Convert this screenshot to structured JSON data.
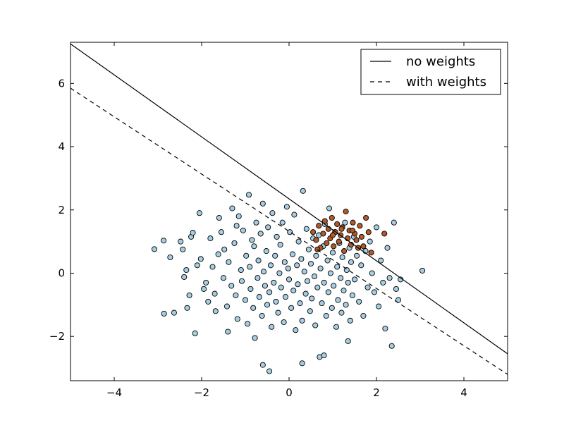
{
  "chart_data": {
    "type": "scatter",
    "title": "",
    "xlabel": "",
    "ylabel": "",
    "xlim": [
      -5,
      5
    ],
    "ylim": [
      -3.4,
      7.3
    ],
    "xticks": [
      -4,
      -2,
      0,
      2,
      4
    ],
    "xtick_labels": [
      "−4",
      "−2",
      "0",
      "2",
      "4"
    ],
    "yticks": [
      -2,
      0,
      2,
      4,
      6
    ],
    "ytick_labels": [
      "−2",
      "0",
      "2",
      "4",
      "6"
    ],
    "grid": false,
    "legend_position": "top-right",
    "scatter_series": [
      {
        "color": "#a6cee3",
        "points": [
          [
            -3.08,
            0.76
          ],
          [
            -2.87,
            1.03
          ],
          [
            -2.86,
            -1.28
          ],
          [
            -2.72,
            0.5
          ],
          [
            -2.63,
            -1.25
          ],
          [
            -2.48,
            1.0
          ],
          [
            -2.43,
            0.75
          ],
          [
            -2.4,
            -0.12
          ],
          [
            -2.35,
            0.1
          ],
          [
            -2.33,
            -1.1
          ],
          [
            -2.28,
            -0.7
          ],
          [
            -2.24,
            1.15
          ],
          [
            -2.2,
            1.28
          ],
          [
            -2.15,
            -1.9
          ],
          [
            -2.1,
            0.25
          ],
          [
            -2.05,
            1.9
          ],
          [
            -2.02,
            0.45
          ],
          [
            -1.95,
            -0.5
          ],
          [
            -1.9,
            -0.3
          ],
          [
            -1.85,
            -0.9
          ],
          [
            -1.8,
            1.1
          ],
          [
            -1.75,
            0.2
          ],
          [
            -1.7,
            -0.65
          ],
          [
            -1.68,
            -1.2
          ],
          [
            -1.62,
            0.6
          ],
          [
            -1.6,
            1.75
          ],
          [
            -1.55,
            1.3
          ],
          [
            -1.5,
            -0.15
          ],
          [
            -1.48,
            0.75
          ],
          [
            -1.42,
            -1.05
          ],
          [
            -1.4,
            -1.85
          ],
          [
            -1.38,
            0.35
          ],
          [
            -1.32,
            -0.4
          ],
          [
            -1.3,
            2.05
          ],
          [
            -1.25,
            0.95
          ],
          [
            -1.22,
            -0.7
          ],
          [
            -1.18,
            -1.45
          ],
          [
            -1.15,
            1.8
          ],
          [
            -1.1,
            0.1
          ],
          [
            -1.08,
            -0.25
          ],
          [
            -1.05,
            1.35
          ],
          [
            -1.0,
            -0.85
          ],
          [
            -0.98,
            0.55
          ],
          [
            -0.95,
            -1.6
          ],
          [
            -0.92,
            2.48
          ],
          [
            -0.9,
            0.2
          ],
          [
            -0.88,
            -0.5
          ],
          [
            -0.85,
            1.05
          ],
          [
            -0.82,
            -1.1
          ],
          [
            -0.8,
            0.85
          ],
          [
            -0.78,
            -2.05
          ],
          [
            -0.75,
            1.6
          ],
          [
            -0.72,
            -0.15
          ],
          [
            -0.7,
            0.4
          ],
          [
            -0.68,
            -0.75
          ],
          [
            -0.65,
            1.25
          ],
          [
            -0.62,
            -1.35
          ],
          [
            -0.6,
            2.2
          ],
          [
            -0.58,
            0.05
          ],
          [
            -0.55,
            -0.4
          ],
          [
            -0.52,
            0.7
          ],
          [
            -0.5,
            -1.0
          ],
          [
            -0.48,
            1.45
          ],
          [
            -0.45,
            -0.6
          ],
          [
            -0.42,
            0.25
          ],
          [
            -0.4,
            -1.7
          ],
          [
            -0.38,
            1.9
          ],
          [
            -0.35,
            -0.3
          ],
          [
            -0.32,
            0.55
          ],
          [
            -0.3,
            -0.9
          ],
          [
            -0.28,
            1.15
          ],
          [
            -0.25,
            -1.25
          ],
          [
            -0.22,
            0.0
          ],
          [
            -0.2,
            0.9
          ],
          [
            -0.18,
            -0.45
          ],
          [
            -0.15,
            1.6
          ],
          [
            -0.12,
            -1.55
          ],
          [
            -0.1,
            0.35
          ],
          [
            -0.08,
            -0.75
          ],
          [
            -0.05,
            2.1
          ],
          [
            -0.02,
            0.15
          ],
          [
            0.0,
            -0.2
          ],
          [
            0.02,
            1.3
          ],
          [
            0.05,
            -1.1
          ],
          [
            0.08,
            0.6
          ],
          [
            0.1,
            -0.55
          ],
          [
            0.12,
            1.85
          ],
          [
            0.15,
            -1.8
          ],
          [
            0.18,
            0.25
          ],
          [
            0.2,
            -0.35
          ],
          [
            0.22,
            1.0
          ],
          [
            0.25,
            -0.95
          ],
          [
            0.28,
            0.45
          ],
          [
            0.3,
            -1.5
          ],
          [
            0.32,
            2.6
          ],
          [
            0.35,
            0.05
          ],
          [
            0.38,
            -0.65
          ],
          [
            0.4,
            1.4
          ],
          [
            0.42,
            -0.25
          ],
          [
            0.45,
            0.75
          ],
          [
            0.48,
            -1.2
          ],
          [
            0.5,
            0.3
          ],
          [
            0.52,
            -0.8
          ],
          [
            0.55,
            1.1
          ],
          [
            0.58,
            -0.1
          ],
          [
            0.6,
            -1.65
          ],
          [
            0.62,
            0.55
          ],
          [
            0.65,
            -0.45
          ],
          [
            0.68,
            1.2
          ],
          [
            0.7,
            -2.65
          ],
          [
            0.72,
            0.15
          ],
          [
            0.75,
            -0.95
          ],
          [
            0.78,
            0.85
          ],
          [
            0.8,
            -0.3
          ],
          [
            0.82,
            1.55
          ],
          [
            0.85,
            -1.35
          ],
          [
            0.88,
            0.4
          ],
          [
            0.9,
            -0.6
          ],
          [
            0.92,
            2.05
          ],
          [
            0.95,
            0.0
          ],
          [
            0.98,
            -1.1
          ],
          [
            1.0,
            0.65
          ],
          [
            1.02,
            -0.4
          ],
          [
            1.05,
            1.3
          ],
          [
            1.08,
            -1.7
          ],
          [
            1.1,
            0.2
          ],
          [
            1.12,
            -0.85
          ],
          [
            1.15,
            0.95
          ],
          [
            1.18,
            -0.15
          ],
          [
            1.2,
            -1.25
          ],
          [
            1.22,
            0.5
          ],
          [
            1.25,
            -0.55
          ],
          [
            1.28,
            1.6
          ],
          [
            1.3,
            -1.0
          ],
          [
            1.32,
            0.1
          ],
          [
            1.35,
            -0.3
          ],
          [
            1.38,
            0.8
          ],
          [
            1.4,
            -1.5
          ],
          [
            1.42,
            0.35
          ],
          [
            1.45,
            -0.7
          ],
          [
            1.48,
            1.15
          ],
          [
            1.5,
            -0.2
          ],
          [
            1.55,
            0.55
          ],
          [
            1.6,
            -0.9
          ],
          [
            1.65,
            0.25
          ],
          [
            1.7,
            -1.35
          ],
          [
            1.75,
            0.7
          ],
          [
            1.8,
            -0.45
          ],
          [
            1.85,
            1.0
          ],
          [
            1.9,
            0.0
          ],
          [
            1.95,
            -0.6
          ],
          [
            2.0,
            1.45
          ],
          [
            2.05,
            -1.05
          ],
          [
            2.1,
            0.4
          ],
          [
            2.15,
            -0.3
          ],
          [
            2.2,
            -1.75
          ],
          [
            2.25,
            0.8
          ],
          [
            2.3,
            -0.15
          ],
          [
            2.35,
            -2.3
          ],
          [
            2.4,
            1.6
          ],
          [
            2.45,
            -0.5
          ],
          [
            2.5,
            -0.85
          ],
          [
            2.55,
            -0.2
          ],
          [
            3.05,
            0.08
          ],
          [
            -0.6,
            -2.9
          ],
          [
            -0.45,
            -3.1
          ],
          [
            0.3,
            -2.85
          ],
          [
            0.8,
            -2.6
          ],
          [
            1.35,
            -2.15
          ],
          [
            -1.2,
            1.5
          ]
        ]
      },
      {
        "color": "#b15928",
        "points": [
          [
            0.55,
            1.3
          ],
          [
            0.62,
            1.05
          ],
          [
            0.68,
            1.5
          ],
          [
            0.72,
            0.8
          ],
          [
            0.78,
            1.25
          ],
          [
            0.82,
            1.65
          ],
          [
            0.86,
            0.95
          ],
          [
            0.9,
            1.4
          ],
          [
            0.94,
            1.1
          ],
          [
            0.98,
            1.75
          ],
          [
            1.02,
            0.85
          ],
          [
            1.06,
            1.3
          ],
          [
            1.1,
            1.55
          ],
          [
            1.14,
            1.0
          ],
          [
            1.18,
            1.2
          ],
          [
            1.22,
            1.45
          ],
          [
            1.26,
            0.7
          ],
          [
            1.3,
            1.95
          ],
          [
            1.34,
            1.1
          ],
          [
            1.38,
            1.35
          ],
          [
            1.42,
            0.9
          ],
          [
            1.46,
            1.6
          ],
          [
            1.5,
            1.25
          ],
          [
            1.54,
            1.05
          ],
          [
            1.58,
            0.8
          ],
          [
            1.62,
            1.5
          ],
          [
            1.66,
            1.15
          ],
          [
            1.7,
            0.85
          ],
          [
            1.76,
            1.75
          ],
          [
            1.82,
            1.3
          ],
          [
            1.88,
            0.65
          ],
          [
            2.18,
            1.25
          ],
          [
            0.65,
            0.75
          ],
          [
            1.0,
            1.2
          ],
          [
            1.2,
            1.4
          ],
          [
            1.45,
            1.35
          ]
        ]
      }
    ],
    "lines": [
      {
        "label": "no weights",
        "style": "solid",
        "points": [
          [
            -5,
            7.25
          ],
          [
            5,
            -2.55
          ]
        ]
      },
      {
        "label": "with weights",
        "style": "dashed",
        "points": [
          [
            -5,
            5.85
          ],
          [
            5,
            -3.2
          ]
        ]
      }
    ]
  }
}
